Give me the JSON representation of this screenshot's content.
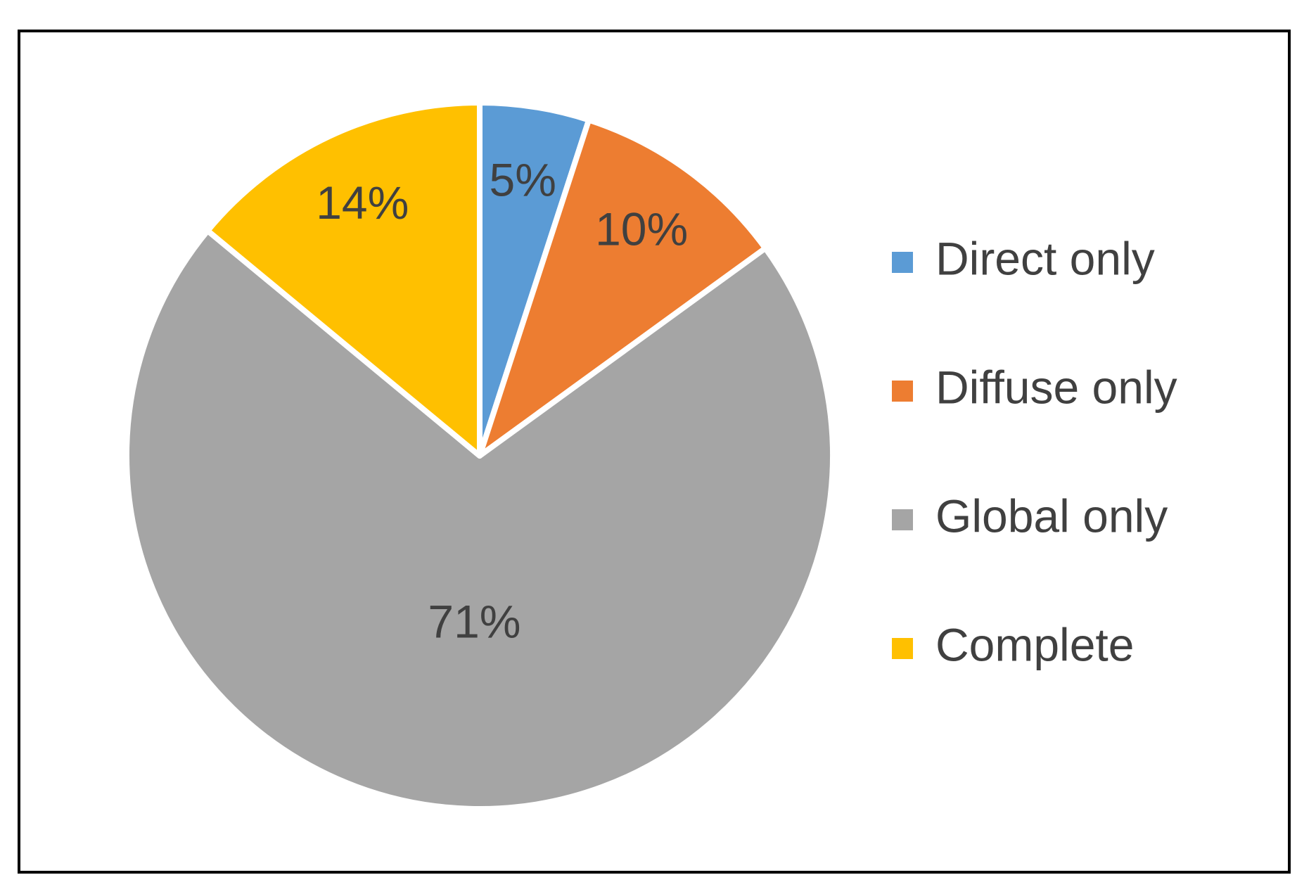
{
  "chart_data": {
    "type": "pie",
    "categories": [
      "Direct only",
      "Diffuse only",
      "Global only",
      "Complete"
    ],
    "values": [
      5,
      10,
      71,
      14
    ],
    "value_labels": [
      "5%",
      "10%",
      "71%",
      "14%"
    ],
    "colors": [
      "#5b9bd5",
      "#ed7d31",
      "#a5a5a5",
      "#ffc000"
    ],
    "legend": "right"
  }
}
